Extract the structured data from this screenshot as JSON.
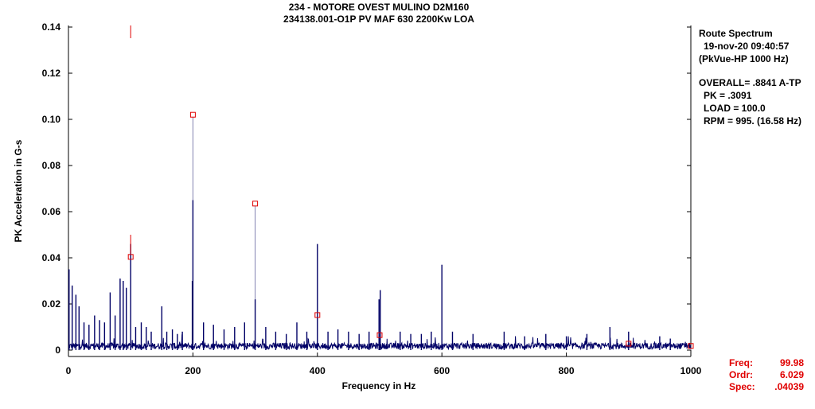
{
  "header": {
    "title_line1": "234  - MOTORE OVEST MULINO D2M160",
    "title_line2": "234138.001-O1P   PV MAF 630 2200Kw LOA"
  },
  "info": {
    "line1": "Route Spectrum",
    "line2": "19-nov-20  09:40:57",
    "line3": "(PkVue-HP 1000 Hz)",
    "overall": "OVERALL= .8841 A-TP",
    "pk": "PK  =  .3091",
    "load": "LOAD = 100.0",
    "rpm": "RPM = 995. (16.58 Hz)"
  },
  "cursor": {
    "freq_label": "Freq:",
    "freq_value": "99.98",
    "ordr_label": "Ordr:",
    "ordr_value": "6.029",
    "spec_label": "Spec:",
    "spec_value": ".04039"
  },
  "colors": {
    "spectrum": "#000066",
    "marker": "#e00000",
    "harmonic_line": "#8080b0",
    "axis": "#000000"
  },
  "chart_data": {
    "type": "line",
    "title": "234  - MOTORE OVEST MULINO D2M160",
    "xlabel": "Frequency in Hz",
    "ylabel": "PK Acceleration in G-s",
    "xlim": [
      0,
      1000
    ],
    "ylim": [
      0,
      0.14
    ],
    "x_ticks": [
      0,
      200,
      400,
      600,
      800,
      1000
    ],
    "x_tick_labels": [
      "0",
      "200",
      "400",
      "600",
      "800",
      "1000"
    ],
    "y_ticks": [
      0,
      0.02,
      0.04,
      0.06,
      0.08,
      0.1,
      0.12,
      0.14
    ],
    "y_tick_labels": [
      "0",
      "0.02",
      "0.04",
      "0.06",
      "0.08",
      "0.10",
      "0.12",
      "0.14"
    ],
    "grid": false,
    "noise_floor": 0.003,
    "peaks": [
      {
        "x": 1,
        "y": 0.035
      },
      {
        "x": 6,
        "y": 0.028
      },
      {
        "x": 12,
        "y": 0.024
      },
      {
        "x": 17,
        "y": 0.019
      },
      {
        "x": 25,
        "y": 0.012
      },
      {
        "x": 33,
        "y": 0.011
      },
      {
        "x": 42,
        "y": 0.015
      },
      {
        "x": 50,
        "y": 0.013
      },
      {
        "x": 58,
        "y": 0.012
      },
      {
        "x": 67,
        "y": 0.025
      },
      {
        "x": 75,
        "y": 0.015
      },
      {
        "x": 83,
        "y": 0.031
      },
      {
        "x": 88,
        "y": 0.03
      },
      {
        "x": 93,
        "y": 0.027
      },
      {
        "x": 100,
        "y": 0.046
      },
      {
        "x": 108,
        "y": 0.01
      },
      {
        "x": 117,
        "y": 0.012
      },
      {
        "x": 125,
        "y": 0.01
      },
      {
        "x": 133,
        "y": 0.008
      },
      {
        "x": 150,
        "y": 0.019
      },
      {
        "x": 158,
        "y": 0.008
      },
      {
        "x": 167,
        "y": 0.009
      },
      {
        "x": 175,
        "y": 0.007
      },
      {
        "x": 183,
        "y": 0.008
      },
      {
        "x": 199,
        "y": 0.03
      },
      {
        "x": 200,
        "y": 0.065
      },
      {
        "x": 217,
        "y": 0.012
      },
      {
        "x": 233,
        "y": 0.011
      },
      {
        "x": 250,
        "y": 0.009
      },
      {
        "x": 267,
        "y": 0.01
      },
      {
        "x": 283,
        "y": 0.012
      },
      {
        "x": 300,
        "y": 0.022
      },
      {
        "x": 317,
        "y": 0.01
      },
      {
        "x": 333,
        "y": 0.008
      },
      {
        "x": 350,
        "y": 0.007
      },
      {
        "x": 367,
        "y": 0.012
      },
      {
        "x": 383,
        "y": 0.008
      },
      {
        "x": 400,
        "y": 0.046
      },
      {
        "x": 417,
        "y": 0.008
      },
      {
        "x": 433,
        "y": 0.009
      },
      {
        "x": 450,
        "y": 0.008
      },
      {
        "x": 467,
        "y": 0.007
      },
      {
        "x": 483,
        "y": 0.008
      },
      {
        "x": 499,
        "y": 0.022
      },
      {
        "x": 501,
        "y": 0.026
      },
      {
        "x": 533,
        "y": 0.008
      },
      {
        "x": 550,
        "y": 0.007
      },
      {
        "x": 567,
        "y": 0.007
      },
      {
        "x": 583,
        "y": 0.008
      },
      {
        "x": 600,
        "y": 0.037
      },
      {
        "x": 617,
        "y": 0.008
      },
      {
        "x": 650,
        "y": 0.007
      },
      {
        "x": 700,
        "y": 0.008
      },
      {
        "x": 733,
        "y": 0.006
      },
      {
        "x": 767,
        "y": 0.007
      },
      {
        "x": 800,
        "y": 0.006
      },
      {
        "x": 833,
        "y": 0.007
      },
      {
        "x": 870,
        "y": 0.01
      },
      {
        "x": 900,
        "y": 0.008
      },
      {
        "x": 950,
        "y": 0.006
      },
      {
        "x": 967,
        "y": 0.005
      }
    ],
    "harmonic_markers": [
      {
        "x": 100,
        "y": 0.0404
      },
      {
        "x": 200,
        "y": 0.102
      },
      {
        "x": 300,
        "y": 0.0635
      },
      {
        "x": 400,
        "y": 0.0152
      },
      {
        "x": 500,
        "y": 0.0065
      },
      {
        "x": 1000,
        "y": 0.0018
      },
      {
        "x": 900,
        "y": 0.0028
      }
    ],
    "cursor_x": 99.98,
    "cursor_y": 0.04039
  }
}
